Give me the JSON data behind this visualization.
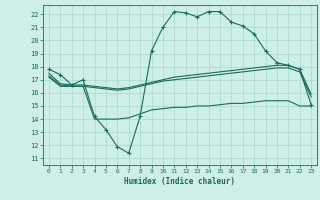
{
  "xlabel": "Humidex (Indice chaleur)",
  "bg_color": "#ceeee8",
  "line_color": "#1a6b5a",
  "grid_color": "#a8d8d0",
  "xlim": [
    -0.5,
    23.5
  ],
  "ylim": [
    10.5,
    22.7
  ],
  "yticks": [
    11,
    12,
    13,
    14,
    15,
    16,
    17,
    18,
    19,
    20,
    21,
    22
  ],
  "xticks": [
    0,
    1,
    2,
    3,
    4,
    5,
    6,
    7,
    8,
    9,
    10,
    11,
    12,
    13,
    14,
    15,
    16,
    17,
    18,
    19,
    20,
    21,
    22,
    23
  ],
  "line1_x": [
    0,
    1,
    2,
    3,
    4,
    5,
    6,
    7,
    8,
    9,
    10,
    11,
    12,
    13,
    14,
    15,
    16,
    17,
    18,
    19,
    20,
    21,
    22,
    23
  ],
  "line1_y": [
    17.8,
    17.4,
    16.6,
    17.0,
    14.2,
    13.2,
    11.9,
    11.4,
    14.2,
    19.2,
    21.0,
    22.2,
    22.1,
    21.8,
    22.2,
    22.2,
    21.4,
    21.1,
    20.5,
    19.2,
    18.3,
    18.1,
    17.8,
    15.1
  ],
  "line2_x": [
    0,
    1,
    2,
    3,
    4,
    5,
    6,
    7,
    8,
    9,
    10,
    11,
    12,
    13,
    14,
    15,
    16,
    17,
    18,
    19,
    20,
    21,
    22,
    23
  ],
  "line2_y": [
    17.2,
    16.5,
    16.5,
    16.5,
    14.0,
    14.0,
    14.0,
    14.1,
    14.4,
    14.7,
    14.8,
    14.9,
    14.9,
    15.0,
    15.0,
    15.1,
    15.2,
    15.2,
    15.3,
    15.4,
    15.4,
    15.4,
    15.0,
    15.0
  ],
  "line3_x": [
    0,
    1,
    2,
    3,
    4,
    5,
    6,
    7,
    8,
    9,
    10,
    11,
    12,
    13,
    14,
    15,
    16,
    17,
    18,
    19,
    20,
    21,
    22,
    23
  ],
  "line3_y": [
    17.5,
    16.7,
    16.6,
    16.6,
    16.5,
    16.4,
    16.3,
    16.4,
    16.6,
    16.8,
    17.0,
    17.2,
    17.3,
    17.4,
    17.5,
    17.6,
    17.7,
    17.8,
    17.9,
    18.0,
    18.1,
    18.1,
    17.8,
    15.9
  ],
  "line4_x": [
    0,
    1,
    2,
    3,
    4,
    5,
    6,
    7,
    8,
    9,
    10,
    11,
    12,
    13,
    14,
    15,
    16,
    17,
    18,
    19,
    20,
    21,
    22,
    23
  ],
  "line4_y": [
    17.3,
    16.6,
    16.5,
    16.5,
    16.4,
    16.3,
    16.2,
    16.3,
    16.5,
    16.7,
    16.9,
    17.0,
    17.1,
    17.2,
    17.3,
    17.4,
    17.5,
    17.6,
    17.7,
    17.8,
    17.9,
    17.9,
    17.6,
    15.7
  ]
}
